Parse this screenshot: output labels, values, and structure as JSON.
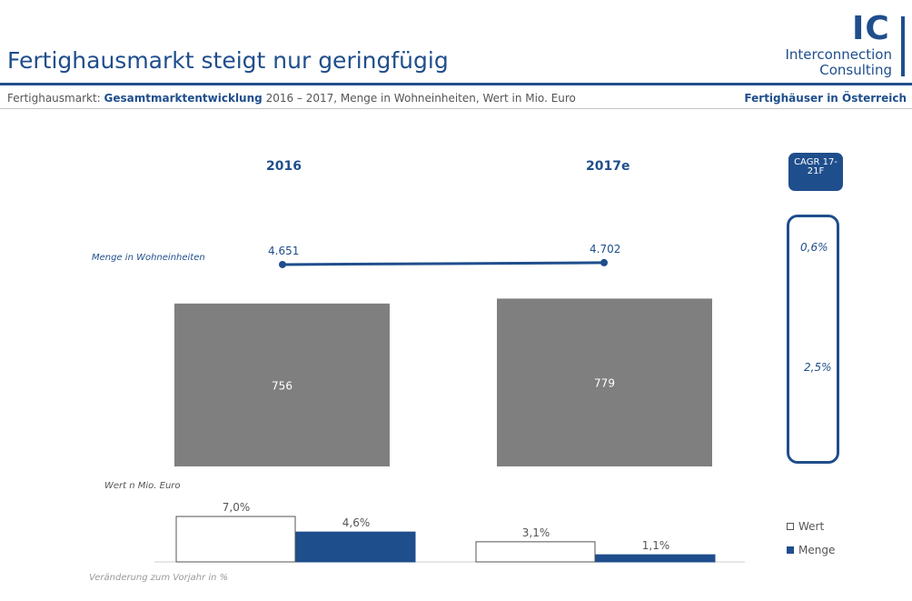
{
  "header": {
    "title": "Fertighausmarkt steigt nur geringfügig",
    "subtitle_prefix": "Fertighausmarkt: ",
    "subtitle_bold": "Gesamtmarktentwicklung",
    "subtitle_rest": " 2016 – 2017, Menge in Wohneinheiten, Wert in Mio. Euro",
    "region": "Fertighäuser in Österreich"
  },
  "logo": {
    "mark": "IC",
    "line1": "Interconnection",
    "line2": "Consulting",
    "brand_color": "#1f4e8c"
  },
  "cagr": {
    "label": "CAGR 17-21F",
    "menge": "0,6%",
    "wert": "2,5%"
  },
  "legend": [
    {
      "label": "Wert",
      "style": "outline"
    },
    {
      "label": "Menge",
      "style": "filled",
      "color": "#1f4e8c"
    }
  ],
  "chart_data": [
    {
      "type": "line",
      "x": [
        "2016",
        "2017e"
      ],
      "values": [
        4651,
        4702
      ],
      "data_labels": [
        "4.651",
        "4.702"
      ],
      "ylabel": "Menge in Wohneinheiten",
      "color": "#1f4e8c"
    },
    {
      "type": "bar",
      "categories": [
        "2016",
        "2017e"
      ],
      "values": [
        756,
        779
      ],
      "data_labels": [
        "756",
        "779"
      ],
      "ylabel": "Wert  n Mio. Euro",
      "color": "#7f7f7f"
    },
    {
      "type": "bar",
      "categories": [
        "2016",
        "2017e"
      ],
      "series": [
        {
          "name": "Wert",
          "values": [
            7.0,
            3.1
          ],
          "labels": [
            "7,0%",
            "3,1%"
          ],
          "color": "#ffffff"
        },
        {
          "name": "Menge",
          "values": [
            4.6,
            1.1
          ],
          "labels": [
            "4,6%",
            "1,1%"
          ],
          "color": "#1f4e8c"
        }
      ],
      "xlabel": "Veränderung zum Vorjahr in %"
    }
  ]
}
